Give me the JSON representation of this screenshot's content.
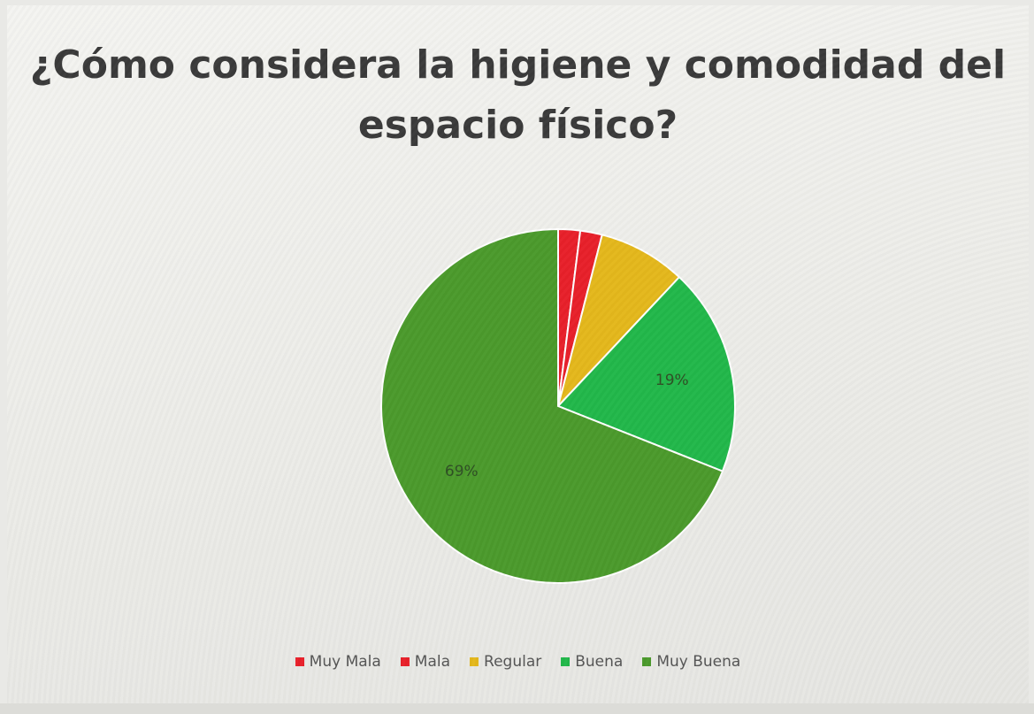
{
  "chart_data": {
    "type": "pie",
    "title_lines": [
      "¿Cómo considera la higiene y comodidad del",
      "espacio físico?"
    ],
    "categories": [
      "Muy Mala",
      "Mala",
      "Regular",
      "Buena",
      "Muy Buena"
    ],
    "values": [
      2,
      2,
      8,
      19,
      69
    ],
    "colors": [
      "#e8202a",
      "#e8202a",
      "#e4b81c",
      "#22b84a",
      "#4b9a2c"
    ],
    "data_labels": [
      "",
      "",
      "",
      "19%",
      "69%"
    ],
    "legend_position": "bottom"
  }
}
